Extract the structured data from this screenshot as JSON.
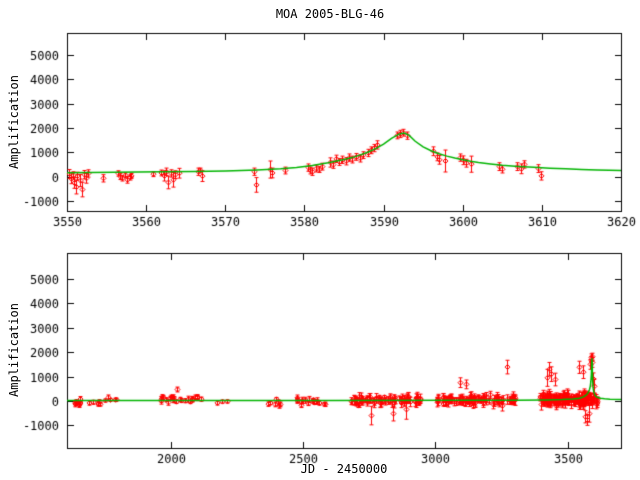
{
  "title": "MOA 2005-BLG-46",
  "colors": {
    "background": "#ffffff",
    "axis": "#000000",
    "data": "#ff0000",
    "model": "#00b400"
  },
  "chart_data": [
    {
      "type": "scatter",
      "name": "top-panel",
      "title": "MOA 2005-BLG-46",
      "xlabel": "",
      "ylabel": "Amplification",
      "xlim": [
        3550,
        3620
      ],
      "ylim": [
        -1400,
        5900
      ],
      "xticks": [
        3550,
        3560,
        3570,
        3580,
        3590,
        3600,
        3610,
        3620
      ],
      "yticks": [
        -1000,
        0,
        1000,
        2000,
        3000,
        4000,
        5000
      ],
      "grid": false,
      "legend": "none",
      "series": [
        {
          "name": "MOA data with error bars",
          "style": "errorbars",
          "color": "#ff0000",
          "points": [
            [
              3550.3,
              120,
              180
            ],
            [
              3550.5,
              -80,
              200
            ],
            [
              3550.7,
              60,
              150
            ],
            [
              3550.9,
              -250,
              220
            ],
            [
              3551.1,
              -420,
              280
            ],
            [
              3551.3,
              30,
              160
            ],
            [
              3551.6,
              -150,
              250
            ],
            [
              3551.9,
              -520,
              300
            ],
            [
              3552.1,
              90,
              170
            ],
            [
              3552.4,
              -60,
              200
            ],
            [
              3552.7,
              140,
              150
            ],
            [
              3554.6,
              -60,
              150
            ],
            [
              3556.4,
              140,
              110
            ],
            [
              3556.7,
              10,
              120
            ],
            [
              3557.0,
              -60,
              110
            ],
            [
              3557.3,
              60,
              100
            ],
            [
              3557.6,
              -120,
              140
            ],
            [
              3557.9,
              -20,
              110
            ],
            [
              3558.1,
              40,
              100
            ],
            [
              3560.9,
              110,
              100
            ],
            [
              3561.9,
              160,
              120
            ],
            [
              3562.2,
              40,
              210
            ],
            [
              3562.5,
              210,
              150
            ],
            [
              3562.8,
              -230,
              260
            ],
            [
              3563.1,
              140,
              150
            ],
            [
              3563.4,
              -120,
              300
            ],
            [
              3563.7,
              90,
              160
            ],
            [
              3564.1,
              150,
              200
            ],
            [
              3566.5,
              210,
              150
            ],
            [
              3566.8,
              260,
              100
            ],
            [
              3567.1,
              30,
              220
            ],
            [
              3573.6,
              210,
              150
            ],
            [
              3573.9,
              -330,
              300
            ],
            [
              3575.6,
              300,
              350
            ],
            [
              3575.9,
              160,
              200
            ],
            [
              3577.6,
              260,
              140
            ],
            [
              3580.4,
              380,
              150
            ],
            [
              3580.7,
              260,
              140
            ],
            [
              3581.0,
              210,
              150
            ],
            [
              3581.4,
              340,
              140
            ],
            [
              3581.8,
              300,
              120
            ],
            [
              3582.2,
              420,
              140
            ],
            [
              3583.2,
              590,
              190
            ],
            [
              3583.6,
              500,
              150
            ],
            [
              3584.0,
              740,
              150
            ],
            [
              3584.4,
              610,
              140
            ],
            [
              3584.8,
              700,
              150
            ],
            [
              3585.2,
              640,
              150
            ],
            [
              3585.6,
              790,
              150
            ],
            [
              3586.0,
              710,
              140
            ],
            [
              3586.5,
              820,
              140
            ],
            [
              3587.0,
              760,
              150
            ],
            [
              3587.4,
              890,
              140
            ],
            [
              3588.0,
              980,
              150
            ],
            [
              3588.4,
              1090,
              140
            ],
            [
              3588.8,
              1180,
              150
            ],
            [
              3589.2,
              1310,
              170
            ],
            [
              3591.7,
              1700,
              140
            ],
            [
              3592.1,
              1760,
              150
            ],
            [
              3592.5,
              1810,
              140
            ],
            [
              3592.9,
              1690,
              150
            ],
            [
              3596.3,
              1050,
              180
            ],
            [
              3596.7,
              820,
              160
            ],
            [
              3597.0,
              700,
              180
            ],
            [
              3597.7,
              650,
              450
            ],
            [
              3599.6,
              790,
              150
            ],
            [
              3600.0,
              680,
              180
            ],
            [
              3600.4,
              560,
              160
            ],
            [
              3601.0,
              520,
              330
            ],
            [
              3604.6,
              420,
              160
            ],
            [
              3605.0,
              310,
              150
            ],
            [
              3606.9,
              420,
              160
            ],
            [
              3607.4,
              330,
              200
            ],
            [
              3607.8,
              510,
              150
            ],
            [
              3609.5,
              340,
              160
            ],
            [
              3609.9,
              40,
              170
            ]
          ]
        },
        {
          "name": "microlensing model",
          "style": "line",
          "color": "#00b400",
          "points": [
            [
              3550,
              170
            ],
            [
              3556,
              185
            ],
            [
              3562,
              205
            ],
            [
              3566,
              220
            ],
            [
              3570,
              245
            ],
            [
              3574,
              285
            ],
            [
              3577,
              330
            ],
            [
              3579,
              380
            ],
            [
              3581,
              470
            ],
            [
              3583,
              580
            ],
            [
              3585,
              710
            ],
            [
              3586,
              790
            ],
            [
              3587,
              890
            ],
            [
              3588,
              1010
            ],
            [
              3589,
              1160
            ],
            [
              3590,
              1340
            ],
            [
              3591,
              1580
            ],
            [
              3592,
              1760
            ],
            [
              3592.6,
              1800
            ],
            [
              3593.2,
              1710
            ],
            [
              3594,
              1460
            ],
            [
              3595,
              1230
            ],
            [
              3596,
              1070
            ],
            [
              3597,
              950
            ],
            [
              3598,
              850
            ],
            [
              3599,
              770
            ],
            [
              3600,
              700
            ],
            [
              3601,
              640
            ],
            [
              3602,
              590
            ],
            [
              3603.5,
              530
            ],
            [
              3605,
              480
            ],
            [
              3607,
              430
            ],
            [
              3609,
              390
            ],
            [
              3611,
              355
            ],
            [
              3613,
              330
            ],
            [
              3615,
              305
            ],
            [
              3617,
              285
            ],
            [
              3620,
              260
            ]
          ]
        }
      ]
    },
    {
      "type": "scatter",
      "name": "bottom-panel",
      "title": "",
      "xlabel": "JD - 2450000",
      "ylabel": "Amplification",
      "xlim": [
        1608,
        3702
      ],
      "ylim": [
        -1930,
        6070
      ],
      "xticks": [
        2000,
        2500,
        3000,
        3500
      ],
      "yticks": [
        -1000,
        0,
        1000,
        2000,
        3000,
        4000,
        5000
      ],
      "grid": false,
      "legend": "none",
      "series": [
        {
          "name": "MOA data with error bars",
          "style": "errorbars",
          "color": "#ff0000",
          "clusters": [
            {
              "x_range": [
                1620,
                1755
              ],
              "n": 18,
              "y_mean": -60,
              "y_spread": 130,
              "err_range": [
                60,
                120
              ],
              "seed": 11
            },
            {
              "x_range": [
                1762,
                1800
              ],
              "n": 4,
              "y_mean": 20,
              "y_spread": 150,
              "err_range": [
                60,
                110
              ],
              "seed": 22
            },
            {
              "x_range": [
                1960,
                2115
              ],
              "n": 26,
              "y_mean": 90,
              "y_spread": 150,
              "err_range": [
                70,
                130
              ],
              "seed": 33
            },
            {
              "x_range": [
                2155,
                2230
              ],
              "n": 3,
              "y_mean": -80,
              "y_spread": 80,
              "err_range": [
                60,
                100
              ],
              "seed": 44
            },
            {
              "x_range": [
                2355,
                2430
              ],
              "n": 7,
              "y_mean": -80,
              "y_spread": 120,
              "err_range": [
                70,
                120
              ],
              "seed": 55
            },
            {
              "x_range": [
                2465,
                2565
              ],
              "n": 15,
              "y_mean": 0,
              "y_spread": 160,
              "err_range": [
                70,
                130
              ],
              "seed": 66
            },
            {
              "x_range": [
                2578,
                2592
              ],
              "n": 2,
              "y_mean": -130,
              "y_spread": 50,
              "err_range": [
                70,
                100
              ],
              "seed": 77
            },
            {
              "x_range": [
                2680,
                2945
              ],
              "n": 75,
              "y_mean": 20,
              "y_spread": 170,
              "err_range": [
                70,
                200
              ],
              "seed": 88
            },
            {
              "x_range": [
                3005,
                3310
              ],
              "n": 90,
              "y_mean": 40,
              "y_spread": 190,
              "err_range": [
                80,
                220
              ],
              "seed": 99
            },
            {
              "x_range": [
                3395,
                3612
              ],
              "n": 165,
              "y_mean": 70,
              "y_spread": 210,
              "err_range": [
                80,
                230
              ],
              "seed": 110
            }
          ],
          "points": [
            [
              2022,
              470,
              100
            ],
            [
              2758,
              -600,
              380
            ],
            [
              2842,
              -520,
              300
            ],
            [
              2890,
              -350,
              400
            ],
            [
              3095,
              750,
              200
            ],
            [
              3115,
              680,
              180
            ],
            [
              3270,
              1390,
              280
            ],
            [
              3424,
              950,
              350
            ],
            [
              3431,
              1300,
              280
            ],
            [
              3436,
              1100,
              300
            ],
            [
              3452,
              880,
              260
            ],
            [
              3545,
              1380,
              250
            ],
            [
              3558,
              1180,
              260
            ],
            [
              3566,
              -650,
              250
            ],
            [
              3574,
              -780,
              220
            ],
            [
              3581,
              -520,
              350
            ],
            [
              3585,
              1500,
              200
            ],
            [
              3588,
              1650,
              180
            ],
            [
              3590,
              1780,
              150
            ],
            [
              3592,
              1820,
              140
            ],
            [
              3594,
              1580,
              200
            ],
            [
              3597,
              900,
              250
            ],
            [
              3600,
              600,
              300
            ]
          ]
        },
        {
          "name": "microlensing model",
          "style": "line",
          "color": "#00b400",
          "points": [
            [
              1608,
              20
            ],
            [
              2600,
              22
            ],
            [
              3100,
              25
            ],
            [
              3300,
              32
            ],
            [
              3420,
              42
            ],
            [
              3480,
              58
            ],
            [
              3520,
              82
            ],
            [
              3545,
              115
            ],
            [
              3560,
              165
            ],
            [
              3570,
              235
            ],
            [
              3578,
              340
            ],
            [
              3583,
              470
            ],
            [
              3586,
              610
            ],
            [
              3588,
              790
            ],
            [
              3590,
              1080
            ],
            [
              3591,
              1380
            ],
            [
              3592,
              1750
            ],
            [
              3593,
              1640
            ],
            [
              3594,
              1140
            ],
            [
              3595,
              840
            ],
            [
              3596,
              640
            ],
            [
              3597,
              495
            ],
            [
              3599,
              375
            ],
            [
              3601,
              295
            ],
            [
              3604,
              228
            ],
            [
              3608,
              178
            ],
            [
              3615,
              138
            ],
            [
              3625,
              108
            ],
            [
              3640,
              88
            ],
            [
              3660,
              72
            ],
            [
              3702,
              58
            ]
          ]
        }
      ]
    }
  ]
}
